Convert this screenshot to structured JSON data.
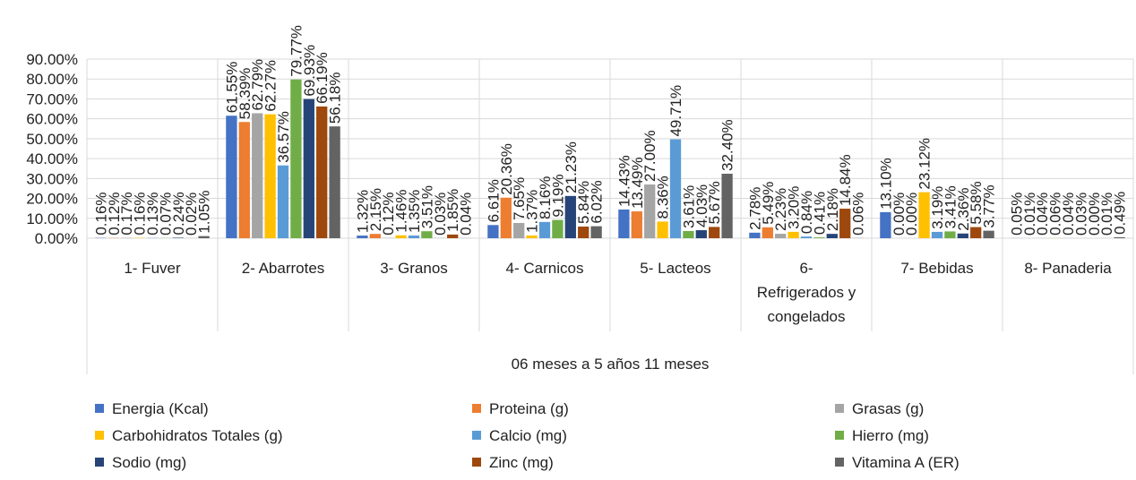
{
  "chart_data": {
    "type": "bar",
    "group_label": "06 meses a 5 años 11 meses",
    "categories": [
      "1- Fuver",
      "2- Abarrotes",
      "3- Granos",
      "4- Carnicos",
      "5- Lacteos",
      "6- Refrigerados y congelados",
      "7- Bebidas",
      "8- Panaderia"
    ],
    "category_lines": [
      [
        "1- Fuver"
      ],
      [
        "2- Abarrotes"
      ],
      [
        "3- Granos"
      ],
      [
        "4- Carnicos"
      ],
      [
        "5- Lacteos"
      ],
      [
        "6-",
        "Refrigerados y",
        "congelados"
      ],
      [
        "7- Bebidas"
      ],
      [
        "8- Panaderia"
      ]
    ],
    "ylim": [
      0,
      0.9
    ],
    "yticks": [
      0,
      0.1,
      0.2,
      0.3,
      0.4,
      0.5,
      0.6,
      0.7,
      0.8,
      0.9
    ],
    "ytick_labels": [
      "0.00%",
      "10.00%",
      "20.00%",
      "30.00%",
      "40.00%",
      "50.00%",
      "60.00%",
      "70.00%",
      "80.00%",
      "90.00%"
    ],
    "grid": true,
    "legend_position": "bottom",
    "series": [
      {
        "name": "Energia (Kcal)",
        "color": "#4472C4",
        "values": [
          0.0016,
          0.6155,
          0.0132,
          0.0661,
          0.1443,
          0.0278,
          0.131,
          0.0005
        ],
        "labels": [
          "0.16%",
          "61.55%",
          "1.32%",
          "6.61%",
          "14.43%",
          "2.78%",
          "13.10%",
          "0.05%"
        ]
      },
      {
        "name": "Proteina (g)",
        "color": "#ED7D31",
        "values": [
          0.0012,
          0.5839,
          0.0215,
          0.2036,
          0.1349,
          0.0549,
          0.0,
          0.0001
        ],
        "labels": [
          "0.12%",
          "58.39%",
          "2.15%",
          "20.36%",
          "13.49%",
          "5.49%",
          "0.00%",
          "0.01%"
        ]
      },
      {
        "name": "Grasas (g)",
        "color": "#A5A5A5",
        "values": [
          0.0017,
          0.6279,
          0.0012,
          0.0765,
          0.27,
          0.0223,
          0.0,
          0.0004
        ],
        "labels": [
          "0.17%",
          "62.79%",
          "0.12%",
          "7.65%",
          "27.00%",
          "2.23%",
          "0.00%",
          "0.04%"
        ]
      },
      {
        "name": "Carbohidratos Totales (g)",
        "color": "#FFC000",
        "values": [
          0.0016,
          0.6227,
          0.0146,
          0.0137,
          0.0836,
          0.032,
          0.2312,
          0.0006
        ],
        "labels": [
          "0.16%",
          "62.27%",
          "1.46%",
          "1.37%",
          "8.36%",
          "3.20%",
          "23.12%",
          "0.06%"
        ]
      },
      {
        "name": "Calcio (mg)",
        "color": "#5B9BD5",
        "values": [
          0.0013,
          0.3657,
          0.0135,
          0.0816,
          0.4971,
          0.0084,
          0.0319,
          0.0004
        ],
        "labels": [
          "0.13%",
          "36.57%",
          "1.35%",
          "8.16%",
          "49.71%",
          "0.84%",
          "3.19%",
          "0.04%"
        ]
      },
      {
        "name": "Hierro (mg)",
        "color": "#70AD47",
        "values": [
          0.0007,
          0.7977,
          0.0351,
          0.0919,
          0.0361,
          0.0041,
          0.0341,
          0.0003
        ],
        "labels": [
          "0.07%",
          "79.77%",
          "3.51%",
          "9.19%",
          "3.61%",
          "0.41%",
          "3.41%",
          "0.03%"
        ]
      },
      {
        "name": "Sodio (mg)",
        "color": "#264478",
        "values": [
          0.0024,
          0.6993,
          0.0003,
          0.2123,
          0.0403,
          0.0218,
          0.0236,
          0.0
        ],
        "labels": [
          "0.24%",
          "69.93%",
          "0.03%",
          "21.23%",
          "4.03%",
          "2.18%",
          "2.36%",
          "0.00%"
        ]
      },
      {
        "name": "Zinc (mg)",
        "color": "#9E480E",
        "values": [
          0.0002,
          0.6619,
          0.0185,
          0.0584,
          0.0567,
          0.1484,
          0.0558,
          0.0001
        ],
        "labels": [
          "0.02%",
          "66.19%",
          "1.85%",
          "5.84%",
          "5.67%",
          "14.84%",
          "5.58%",
          "0.01%"
        ]
      },
      {
        "name": "Vitamina A (ER)",
        "color": "#636363",
        "values": [
          0.0105,
          0.5618,
          0.0004,
          0.0602,
          0.324,
          0.0006,
          0.0377,
          0.0049
        ],
        "labels": [
          "1.05%",
          "56.18%",
          "0.04%",
          "6.02%",
          "32.40%",
          "0.06%",
          "3.77%",
          "0.49%"
        ]
      }
    ]
  }
}
